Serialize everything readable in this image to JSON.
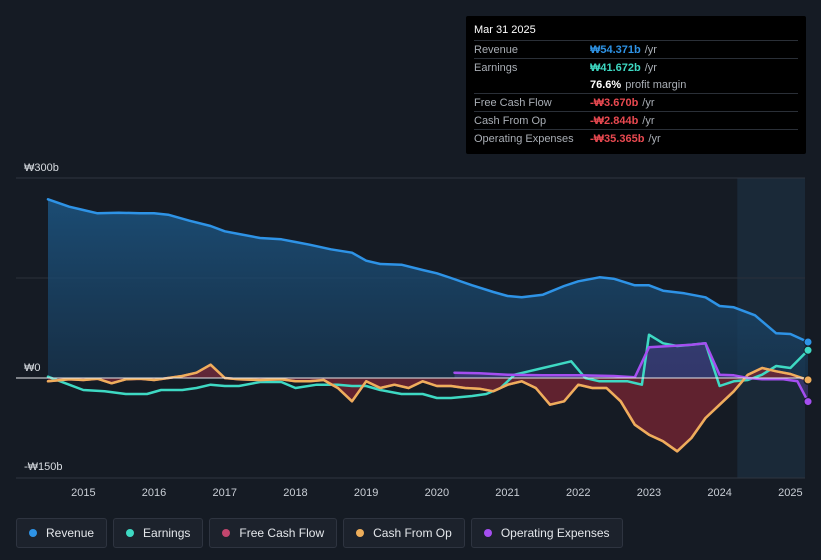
{
  "tooltip": {
    "date": "Mar 31 2025",
    "rows": [
      {
        "label": "Revenue",
        "value": "₩54.371b",
        "unit": "/yr",
        "color": "#2e93e6"
      },
      {
        "label": "Earnings",
        "value": "₩41.672b",
        "unit": "/yr",
        "color": "#3ed9c3"
      },
      {
        "label": "",
        "value": "76.6%",
        "unit": "profit margin",
        "color": "#ffffff"
      },
      {
        "label": "Free Cash Flow",
        "value": "-₩3.670b",
        "unit": "/yr",
        "color": "#e94950"
      },
      {
        "label": "Cash From Op",
        "value": "-₩2.844b",
        "unit": "/yr",
        "color": "#e94950"
      },
      {
        "label": "Operating Expenses",
        "value": "-₩35.365b",
        "unit": "/yr",
        "color": "#e94950"
      }
    ]
  },
  "legend": [
    {
      "label": "Revenue",
      "color": "#2e93e6"
    },
    {
      "label": "Earnings",
      "color": "#3ed9c3"
    },
    {
      "label": "Free Cash Flow",
      "color": "#c2466e"
    },
    {
      "label": "Cash From Op",
      "color": "#eeae5b"
    },
    {
      "label": "Operating Expenses",
      "color": "#a44ef0"
    }
  ],
  "chart_data": {
    "type": "line",
    "title": "",
    "xlabel": "",
    "ylabel": "",
    "ylim": [
      -150,
      300
    ],
    "y_ticks": [
      {
        "value": 300,
        "label": "₩300b"
      },
      {
        "value": 0,
        "label": "₩0"
      },
      {
        "value": -150,
        "label": "-₩150b"
      }
    ],
    "x_ticks": [
      "2015",
      "2016",
      "2017",
      "2018",
      "2019",
      "2020",
      "2021",
      "2022",
      "2023",
      "2024",
      "2025"
    ],
    "x_range": [
      2014.4,
      2025.3
    ],
    "highlight_from": 2024.25,
    "series": [
      {
        "name": "Revenue",
        "color": "#2e93e6",
        "fill": true,
        "x": [
          2014.5,
          2014.8,
          2015.0,
          2015.2,
          2015.5,
          2015.8,
          2016.0,
          2016.2,
          2016.5,
          2016.8,
          2017.0,
          2017.2,
          2017.5,
          2017.8,
          2018.0,
          2018.2,
          2018.5,
          2018.8,
          2019.0,
          2019.2,
          2019.5,
          2019.8,
          2020.0,
          2020.2,
          2020.5,
          2020.8,
          2021.0,
          2021.2,
          2021.5,
          2021.8,
          2022.0,
          2022.3,
          2022.5,
          2022.8,
          2023.0,
          2023.2,
          2023.5,
          2023.8,
          2024.0,
          2024.2,
          2024.5,
          2024.8,
          2025.0,
          2025.25
        ],
        "y": [
          268,
          257,
          252,
          247,
          248,
          247,
          247,
          245,
          236,
          228,
          220,
          216,
          210,
          208,
          204,
          200,
          193,
          188,
          176,
          171,
          170,
          162,
          157,
          150,
          139,
          129,
          123,
          121,
          125,
          138,
          145,
          151,
          149,
          139,
          139,
          131,
          127,
          121,
          108,
          106,
          94,
          67,
          66,
          54
        ]
      },
      {
        "name": "Earnings",
        "color": "#3ed9c3",
        "fill": false,
        "x": [
          2014.5,
          2014.8,
          2015.0,
          2015.3,
          2015.6,
          2015.9,
          2016.1,
          2016.4,
          2016.6,
          2016.8,
          2017.0,
          2017.2,
          2017.5,
          2017.8,
          2018.0,
          2018.3,
          2018.6,
          2018.8,
          2019.0,
          2019.2,
          2019.5,
          2019.8,
          2020.0,
          2020.2,
          2020.5,
          2020.7,
          2020.9,
          2021.1,
          2021.3,
          2021.5,
          2021.7,
          2021.9,
          2022.1,
          2022.3,
          2022.5,
          2022.7,
          2022.9,
          2023.0,
          2023.2,
          2023.4,
          2023.6,
          2023.8,
          2024.0,
          2024.2,
          2024.4,
          2024.6,
          2024.8,
          2025.0,
          2025.25
        ],
        "y": [
          2,
          -10,
          -18,
          -20,
          -24,
          -24,
          -18,
          -18,
          -15,
          -10,
          -12,
          -12,
          -6,
          -6,
          -15,
          -10,
          -10,
          -12,
          -12,
          -18,
          -24,
          -24,
          -30,
          -30,
          -27,
          -24,
          -15,
          5,
          10,
          15,
          20,
          25,
          0,
          -5,
          -5,
          -5,
          -10,
          65,
          52,
          48,
          50,
          52,
          -12,
          -5,
          -3,
          5,
          18,
          15,
          41.672
        ]
      },
      {
        "name": "Free Cash Flow",
        "color": "#c2466e",
        "fill": true,
        "x": [
          2014.5,
          2014.8,
          2015.0,
          2015.2,
          2015.4,
          2015.6,
          2015.8,
          2016.0,
          2016.2,
          2016.4,
          2016.6,
          2016.8,
          2017.0,
          2017.2,
          2017.5,
          2017.8,
          2018.0,
          2018.2,
          2018.4,
          2018.6,
          2018.8,
          2019.0,
          2019.2,
          2019.4,
          2019.6,
          2019.8,
          2020.0,
          2020.2,
          2020.4,
          2020.6,
          2020.8,
          2021.0,
          2021.2,
          2021.4,
          2021.6,
          2021.8,
          2022.0,
          2022.2,
          2022.4,
          2022.6,
          2022.8,
          2023.0,
          2023.2,
          2023.4,
          2023.6,
          2023.8,
          2024.0,
          2024.2,
          2024.4,
          2024.6,
          2024.8,
          2025.0,
          2025.25
        ],
        "y": [
          -5,
          -2,
          -3,
          -1,
          -8,
          -2,
          -1,
          -3,
          0,
          3,
          8,
          20,
          0,
          -2,
          -3,
          -2,
          -5,
          -5,
          -3,
          -15,
          -35,
          -5,
          -15,
          -10,
          -15,
          -5,
          -12,
          -12,
          -15,
          -16,
          -20,
          -10,
          -5,
          -15,
          -40,
          -35,
          -10,
          -15,
          -15,
          -35,
          -70,
          -85,
          -95,
          -110,
          -90,
          -60,
          -40,
          -20,
          5,
          15,
          10,
          6,
          -3.67
        ]
      },
      {
        "name": "Cash From Op",
        "color": "#eeae5b",
        "fill": false,
        "x": [
          2014.5,
          2014.8,
          2015.0,
          2015.2,
          2015.4,
          2015.6,
          2015.8,
          2016.0,
          2016.2,
          2016.4,
          2016.6,
          2016.8,
          2017.0,
          2017.2,
          2017.5,
          2017.8,
          2018.0,
          2018.2,
          2018.4,
          2018.6,
          2018.8,
          2019.0,
          2019.2,
          2019.4,
          2019.6,
          2019.8,
          2020.0,
          2020.2,
          2020.4,
          2020.6,
          2020.8,
          2021.0,
          2021.2,
          2021.4,
          2021.6,
          2021.8,
          2022.0,
          2022.2,
          2022.4,
          2022.6,
          2022.8,
          2023.0,
          2023.2,
          2023.4,
          2023.6,
          2023.8,
          2024.0,
          2024.2,
          2024.4,
          2024.6,
          2024.8,
          2025.0,
          2025.25
        ],
        "y": [
          -5,
          -2,
          -3,
          -1,
          -8,
          -2,
          -1,
          -3,
          0,
          3,
          8,
          20,
          0,
          -2,
          -3,
          -2,
          -5,
          -5,
          -3,
          -15,
          -35,
          -5,
          -15,
          -10,
          -15,
          -5,
          -12,
          -12,
          -15,
          -16,
          -20,
          -10,
          -5,
          -15,
          -40,
          -35,
          -10,
          -15,
          -15,
          -35,
          -70,
          -85,
          -95,
          -110,
          -90,
          -60,
          -40,
          -20,
          5,
          15,
          10,
          6,
          -2.844
        ]
      },
      {
        "name": "Operating Expenses",
        "color": "#a44ef0",
        "fill": true,
        "x": [
          2020.25,
          2020.6,
          2021.0,
          2021.5,
          2022.0,
          2022.5,
          2022.8,
          2023.0,
          2023.3,
          2023.6,
          2023.8,
          2024.0,
          2024.2,
          2024.4,
          2024.6,
          2024.9,
          2025.1,
          2025.25
        ],
        "y": [
          8,
          7,
          5,
          4,
          4,
          3,
          1,
          46,
          48,
          50,
          52,
          5,
          4,
          0,
          -2,
          -2,
          -5,
          -35.365
        ]
      }
    ]
  }
}
